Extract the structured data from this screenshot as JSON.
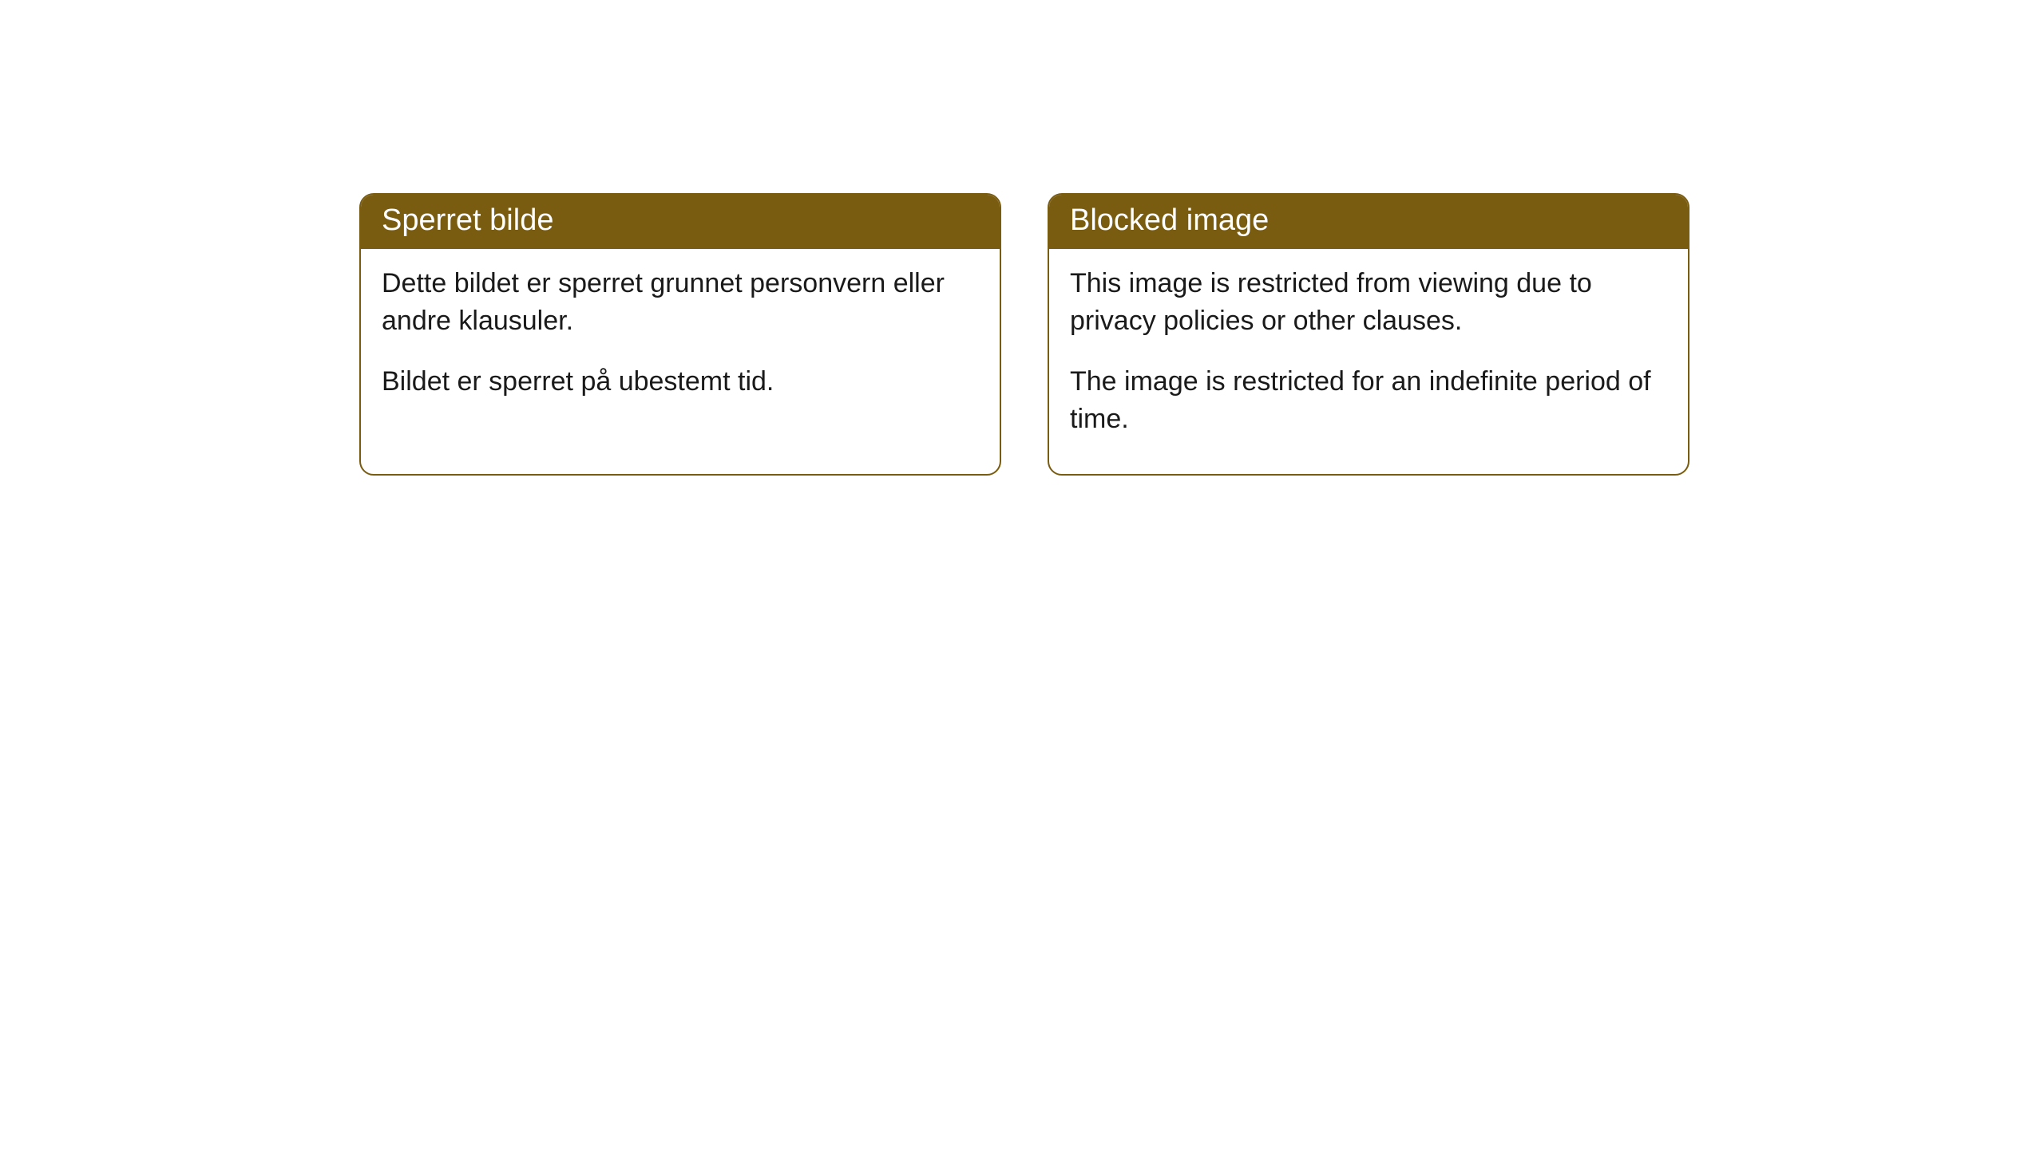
{
  "cards": [
    {
      "title": "Sperret bilde",
      "para1": "Dette bildet er sperret grunnet personvern eller andre klausuler.",
      "para2": "Bildet er sperret på ubestemt tid."
    },
    {
      "title": "Blocked image",
      "para1": "This image is restricted from viewing due to privacy policies or other clauses.",
      "para2": "The image is restricted for an indefinite period of time."
    }
  ],
  "style": {
    "header_bg": "#7a5c10",
    "header_text": "#ffffff",
    "border_color": "#7a5c10",
    "body_bg": "#ffffff",
    "body_text": "#1a1a1a",
    "border_radius": 18,
    "title_fontsize": 38,
    "body_fontsize": 34
  }
}
